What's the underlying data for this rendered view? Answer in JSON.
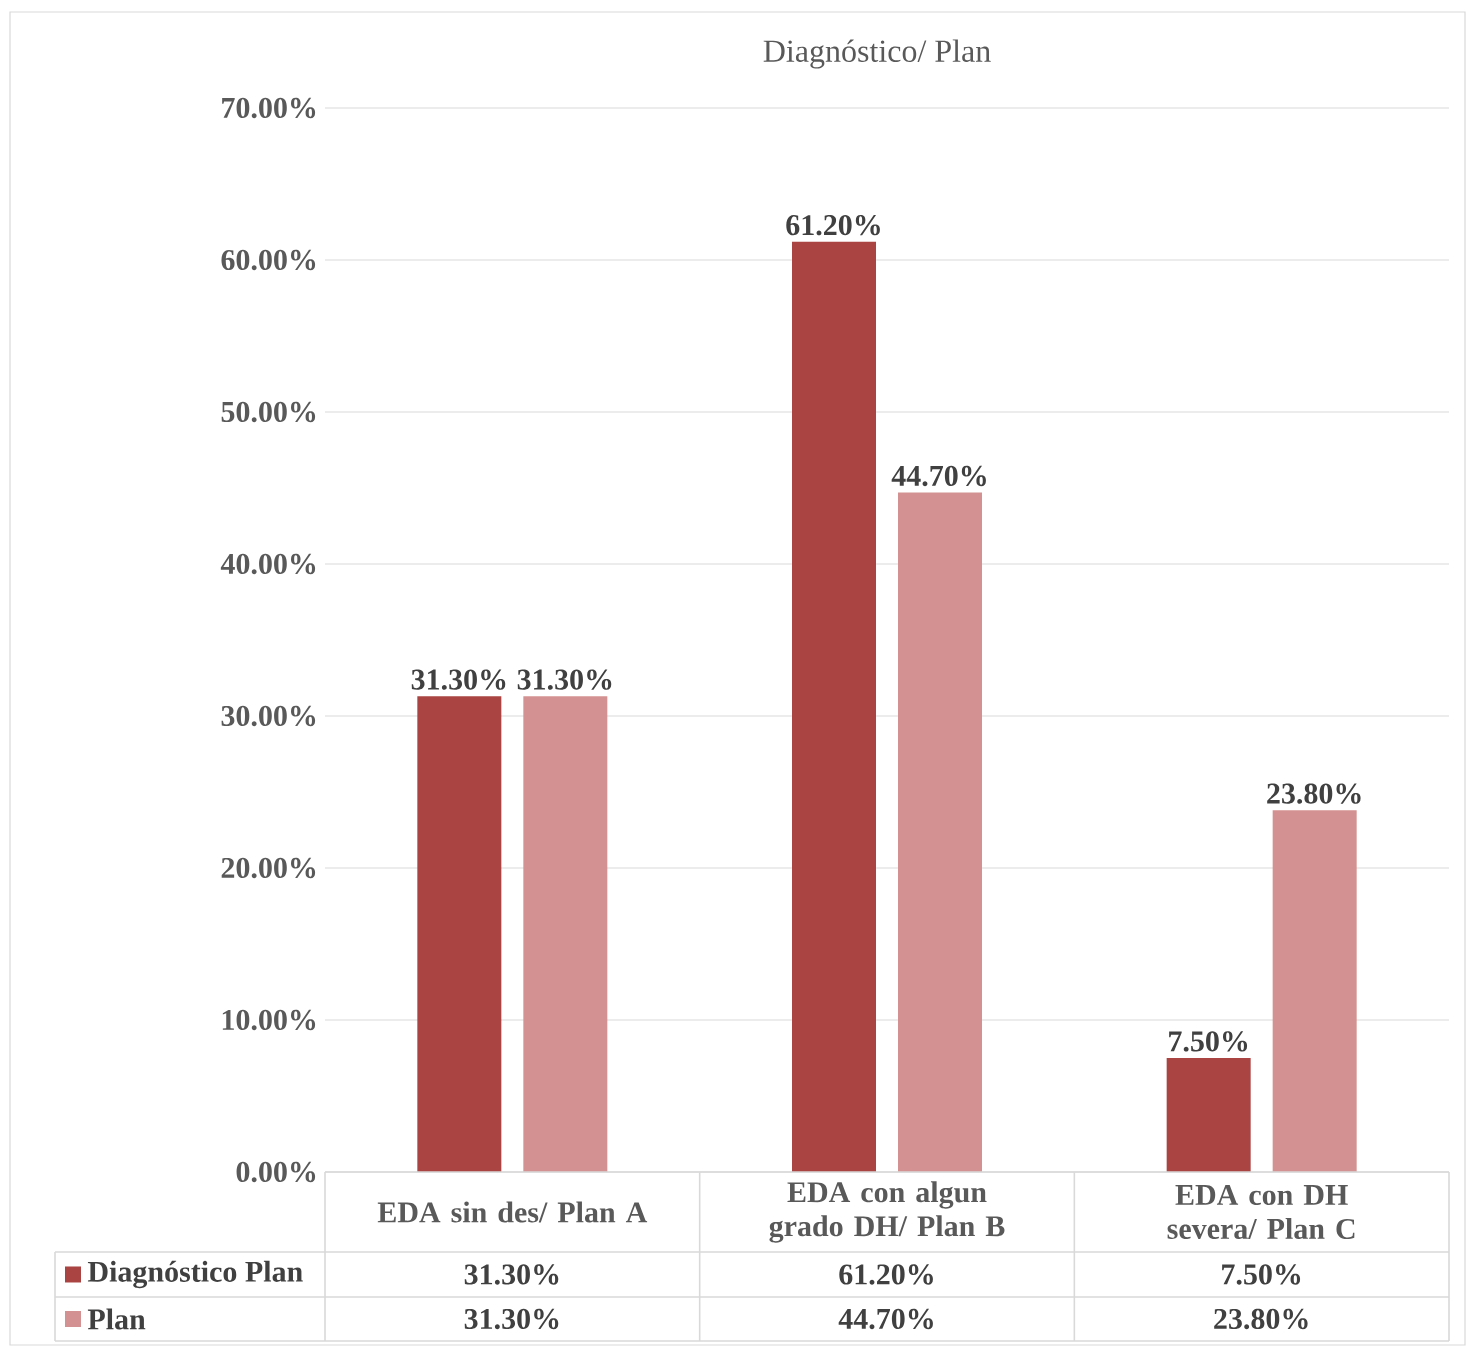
{
  "chart_data": {
    "type": "bar",
    "title": "Diagnóstico/ Plan",
    "categories": [
      "EDA sin des/ Plan A",
      "EDA con algun grado DH/ Plan B",
      "EDA con DH severa/ Plan C"
    ],
    "series": [
      {
        "name": "Diagnóstico Plan",
        "color": "#a94442",
        "values": [
          31.3,
          61.2,
          7.5
        ],
        "value_labels": [
          "31.30%",
          "61.20%",
          "7.50%"
        ]
      },
      {
        "name": "Plan",
        "color": "#d39291",
        "values": [
          31.3,
          44.7,
          23.8
        ],
        "value_labels": [
          "31.30%",
          "44.70%",
          "23.80%"
        ]
      }
    ],
    "ylim": [
      0,
      70
    ],
    "yticks": [
      {
        "value": 0,
        "label": "0.00%"
      },
      {
        "value": 10,
        "label": "10.00%"
      },
      {
        "value": 20,
        "label": "20.00%"
      },
      {
        "value": 30,
        "label": "30.00%"
      },
      {
        "value": 40,
        "label": "40.00%"
      },
      {
        "value": 50,
        "label": "50.00%"
      },
      {
        "value": 60,
        "label": "60.00%"
      },
      {
        "value": 70,
        "label": "70.00%"
      }
    ],
    "grid": "y",
    "legend": "bottom"
  }
}
